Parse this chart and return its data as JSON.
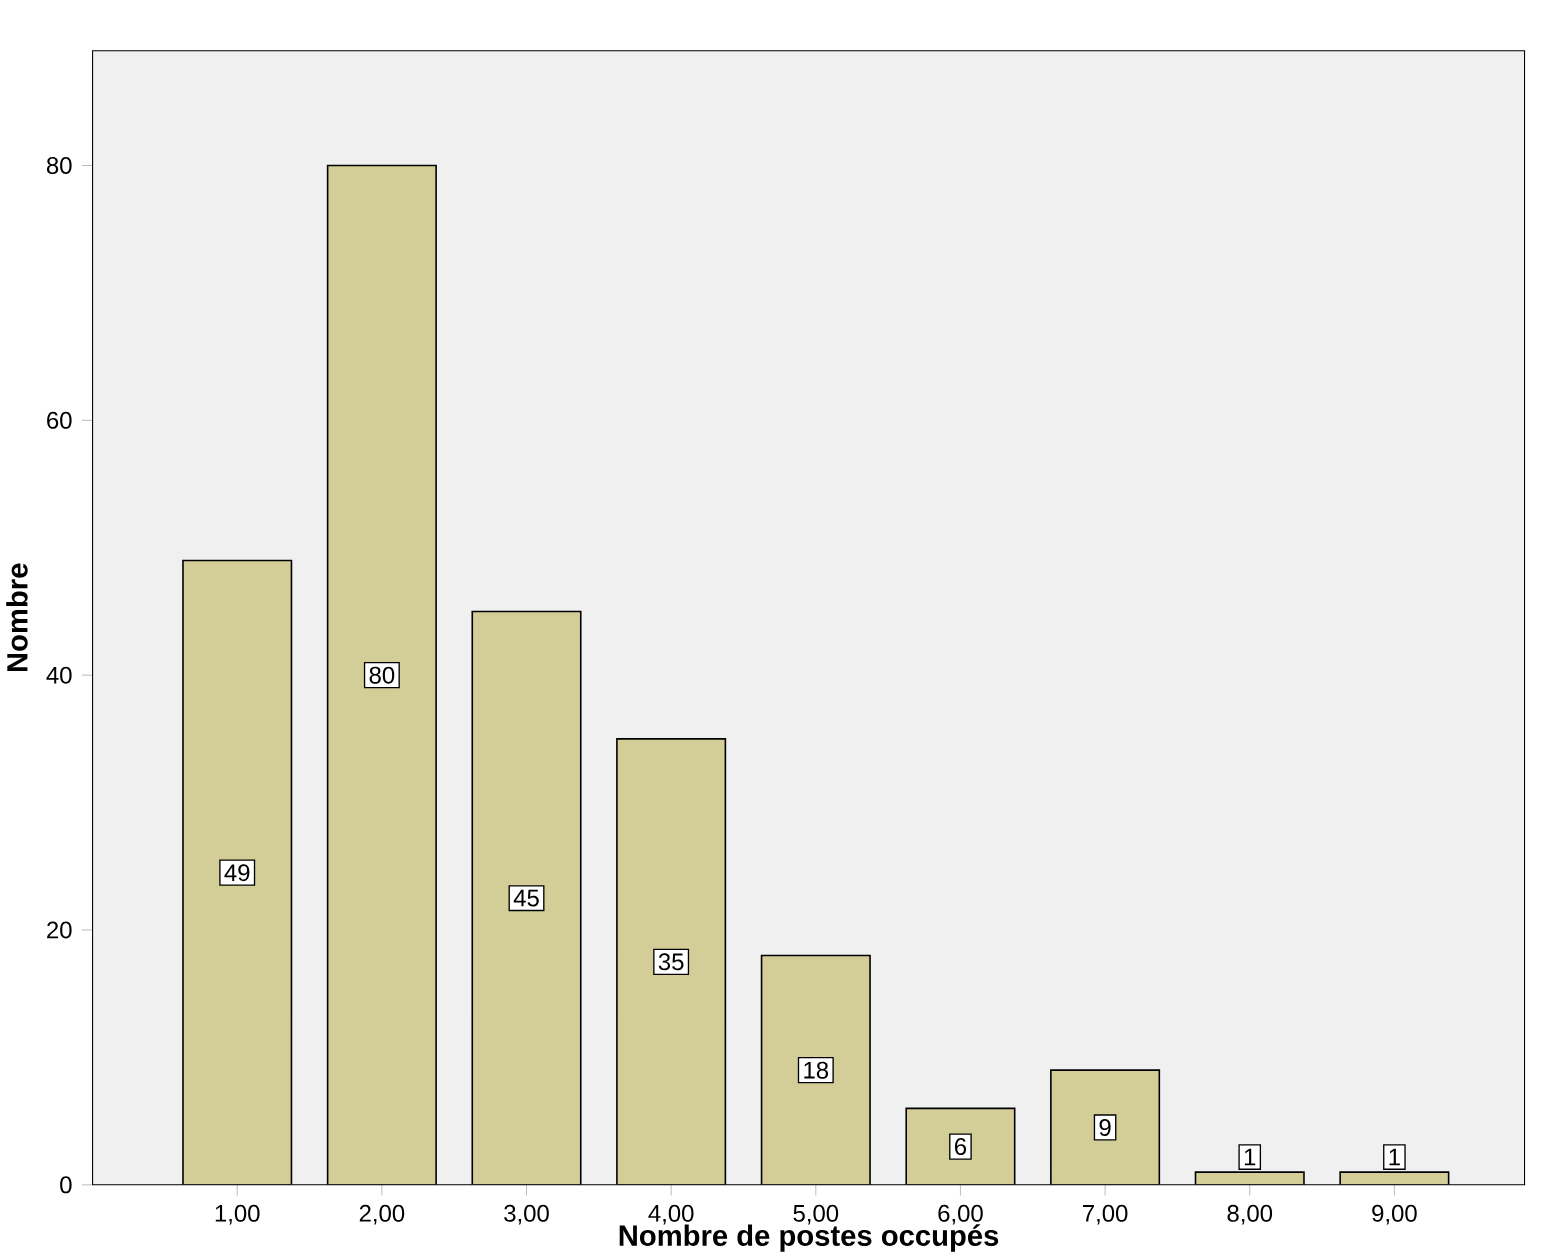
{
  "chart_data": {
    "type": "bar",
    "xlabel": "Nombre de postes occupés",
    "ylabel": "Nombre",
    "categories": [
      "1,00",
      "2,00",
      "3,00",
      "4,00",
      "5,00",
      "6,00",
      "7,00",
      "8,00",
      "9,00"
    ],
    "values": [
      49,
      80,
      45,
      35,
      18,
      6,
      9,
      1,
      1
    ],
    "color": "#d3ce98",
    "ylim": [
      0,
      89
    ],
    "yticks": [
      0,
      20,
      40,
      60,
      80
    ],
    "data_labels": true,
    "grid": false
  }
}
